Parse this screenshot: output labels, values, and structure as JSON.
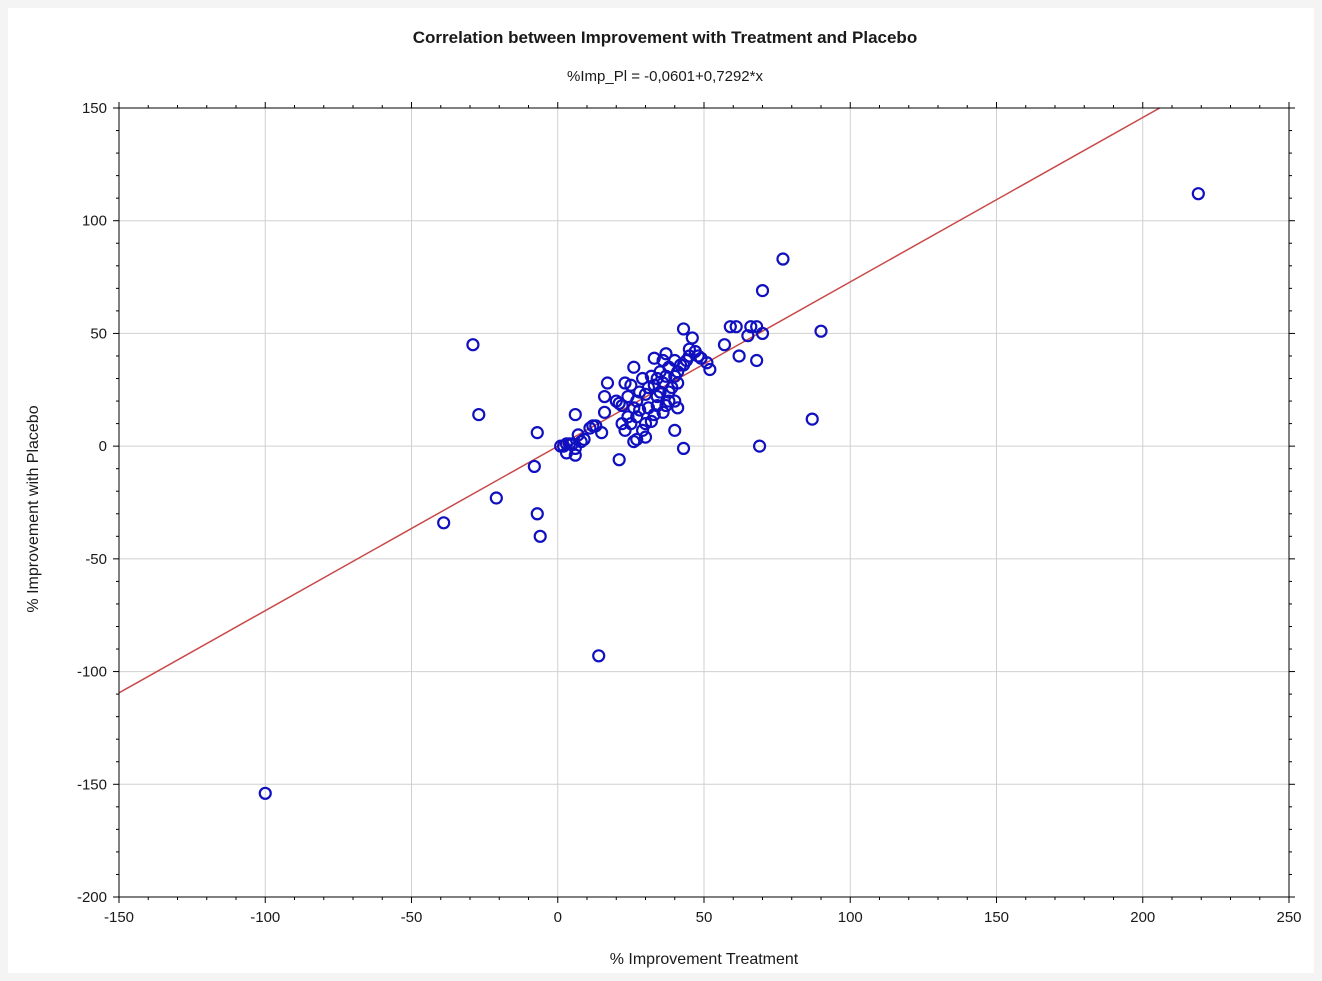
{
  "chart_data": {
    "type": "scatter",
    "title": "Correlation between Improvement with Treatment and Placebo",
    "subtitle": "%Imp_Pl = -0,0601+0,7292*x",
    "xlabel": "% Improvement Treatment",
    "ylabel": "% Improvement with Placebo",
    "xlim": [
      -150,
      250
    ],
    "ylim": [
      -200,
      150
    ],
    "xticks": [
      -150,
      -100,
      -50,
      0,
      50,
      100,
      150,
      200,
      250
    ],
    "yticks": [
      -200,
      -150,
      -100,
      -50,
      0,
      50,
      100,
      150
    ],
    "grid": true,
    "regression": {
      "intercept": -0.0601,
      "slope": 0.7292
    },
    "colors": {
      "points": "#1010c0",
      "line": "#c84848",
      "grid": "#d0d0d0",
      "axis": "#000000"
    },
    "points": [
      [
        -100,
        -154
      ],
      [
        219,
        112
      ],
      [
        77,
        83
      ],
      [
        70,
        69
      ],
      [
        90,
        51
      ],
      [
        87,
        12
      ],
      [
        69,
        0
      ],
      [
        68,
        38
      ],
      [
        70,
        50
      ],
      [
        66,
        53
      ],
      [
        68,
        53
      ],
      [
        65,
        49
      ],
      [
        59,
        53
      ],
      [
        61,
        53
      ],
      [
        62,
        40
      ],
      [
        57,
        45
      ],
      [
        52,
        34
      ],
      [
        51,
        37
      ],
      [
        49,
        39
      ],
      [
        47,
        42
      ],
      [
        46,
        48
      ],
      [
        45,
        40
      ],
      [
        43,
        52
      ],
      [
        44,
        38
      ],
      [
        43,
        36
      ],
      [
        42,
        36
      ],
      [
        41,
        33
      ],
      [
        40,
        38
      ],
      [
        41,
        28
      ],
      [
        40,
        31
      ],
      [
        39,
        26
      ],
      [
        38,
        35
      ],
      [
        37,
        31
      ],
      [
        36,
        38
      ],
      [
        36,
        28
      ],
      [
        35,
        33
      ],
      [
        34,
        30
      ],
      [
        33,
        39
      ],
      [
        33,
        27
      ],
      [
        32,
        31
      ],
      [
        31,
        26
      ],
      [
        30,
        23
      ],
      [
        29,
        30
      ],
      [
        28,
        24
      ],
      [
        27,
        20
      ],
      [
        26,
        35
      ],
      [
        25,
        27
      ],
      [
        24,
        22
      ],
      [
        23,
        28
      ],
      [
        22,
        18
      ],
      [
        21,
        19
      ],
      [
        20,
        20
      ],
      [
        17,
        28
      ],
      [
        16,
        22
      ],
      [
        16,
        15
      ],
      [
        37,
        41
      ],
      [
        38,
        20
      ],
      [
        36,
        15
      ],
      [
        34,
        18
      ],
      [
        33,
        14
      ],
      [
        32,
        11
      ],
      [
        34,
        22
      ],
      [
        31,
        17
      ],
      [
        30,
        10
      ],
      [
        28,
        16
      ],
      [
        27,
        13
      ],
      [
        26,
        17
      ],
      [
        25,
        10
      ],
      [
        41,
        17
      ],
      [
        40,
        20
      ],
      [
        38,
        24
      ],
      [
        37,
        18
      ],
      [
        35,
        24
      ],
      [
        27,
        3
      ],
      [
        29,
        7
      ],
      [
        30,
        4
      ],
      [
        22,
        10
      ],
      [
        23,
        7
      ],
      [
        26,
        2
      ],
      [
        24,
        13
      ],
      [
        15,
        6
      ],
      [
        13,
        9
      ],
      [
        12,
        9
      ],
      [
        11,
        8
      ],
      [
        9,
        3
      ],
      [
        8,
        2
      ],
      [
        7,
        5
      ],
      [
        6,
        -1
      ],
      [
        5,
        1
      ],
      [
        4,
        1
      ],
      [
        3,
        1
      ],
      [
        2,
        0
      ],
      [
        1,
        0
      ],
      [
        3,
        -3
      ],
      [
        6,
        -4
      ],
      [
        6,
        14
      ],
      [
        -7,
        6
      ],
      [
        -8,
        -9
      ],
      [
        -29,
        45
      ],
      [
        -27,
        14
      ],
      [
        -21,
        -23
      ],
      [
        -7,
        -30
      ],
      [
        -6,
        -40
      ],
      [
        -39,
        -34
      ],
      [
        14,
        -93
      ],
      [
        21,
        -6
      ],
      [
        40,
        7
      ],
      [
        43,
        -1
      ],
      [
        48,
        40
      ],
      [
        45,
        43
      ]
    ]
  }
}
